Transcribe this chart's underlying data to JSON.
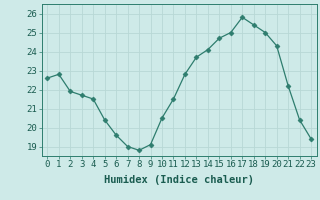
{
  "x": [
    0,
    1,
    2,
    3,
    4,
    5,
    6,
    7,
    8,
    9,
    10,
    11,
    12,
    13,
    14,
    15,
    16,
    17,
    18,
    19,
    20,
    21,
    22,
    23
  ],
  "y": [
    22.6,
    22.8,
    21.9,
    21.7,
    21.5,
    20.4,
    19.6,
    19.0,
    18.8,
    19.1,
    20.5,
    21.5,
    22.8,
    23.7,
    24.1,
    24.7,
    25.0,
    25.8,
    25.4,
    25.0,
    24.3,
    22.2,
    20.4,
    19.4
  ],
  "line_color": "#2e7d6e",
  "marker": "D",
  "marker_size": 2.5,
  "bg_color": "#ceeae8",
  "grid_color": "#b8d8d5",
  "xlabel": "Humidex (Indice chaleur)",
  "ylim": [
    18.5,
    26.5
  ],
  "xlim": [
    -0.5,
    23.5
  ],
  "yticks": [
    19,
    20,
    21,
    22,
    23,
    24,
    25,
    26
  ],
  "xticks": [
    0,
    1,
    2,
    3,
    4,
    5,
    6,
    7,
    8,
    9,
    10,
    11,
    12,
    13,
    14,
    15,
    16,
    17,
    18,
    19,
    20,
    21,
    22,
    23
  ],
  "tick_label_fontsize": 6.5,
  "xlabel_fontsize": 7.5
}
